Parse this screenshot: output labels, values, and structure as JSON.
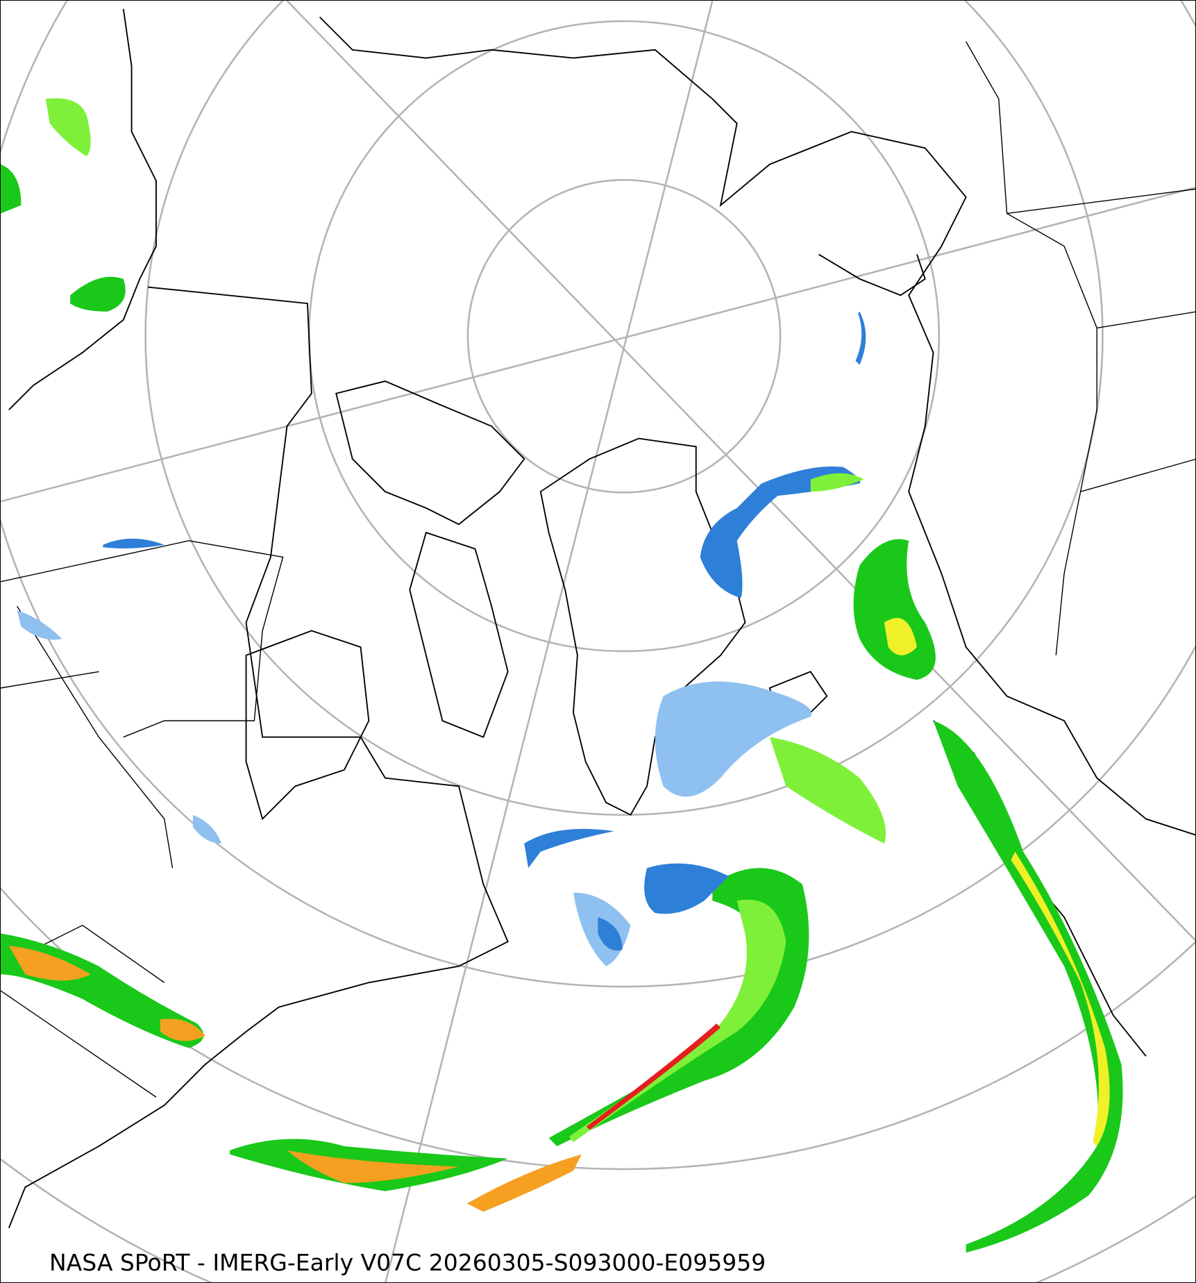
{
  "map": {
    "projection": "north-polar-stereographic",
    "product": "precipitation-rate",
    "graticule_color": "#b4b4b4",
    "coastline_color": "#000000",
    "precip_colors": {
      "very_light": "#cfe4fb",
      "light_blue": "#8ec0f0",
      "blue": "#2e7fd8",
      "dark_green": "#0a8a0a",
      "green": "#19c819",
      "light_green": "#7ef03a",
      "yellow": "#f0f028",
      "orange": "#f5a020",
      "red": "#e61e1e",
      "magenta": "#e040c0"
    }
  },
  "caption": "NASA SPoRT - IMERG-Early V07C 20260305-S093000-E095959"
}
